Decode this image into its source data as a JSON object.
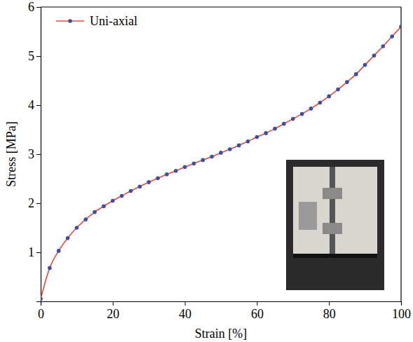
{
  "chart_data": {
    "type": "line",
    "x_label": "Strain [%]",
    "y_label": "Stress [MPa]",
    "x": [
      0,
      2.5,
      5,
      7.5,
      10,
      12.5,
      15,
      17.5,
      20,
      22.5,
      25,
      27.5,
      30,
      32.5,
      35,
      37.5,
      40,
      42.5,
      45,
      47.5,
      50,
      52.5,
      55,
      57.5,
      60,
      62.5,
      65,
      67.5,
      70,
      72.5,
      75,
      77.5,
      80,
      82.5,
      85,
      87.5,
      90,
      92.5,
      95,
      97.5,
      100
    ],
    "series": [
      {
        "name": "Uni-axial",
        "color": "#e8483a",
        "marker": "circle",
        "line_style": "solid",
        "values": [
          0.05,
          0.68,
          1.03,
          1.29,
          1.5,
          1.67,
          1.82,
          1.94,
          2.05,
          2.15,
          2.25,
          2.34,
          2.43,
          2.51,
          2.59,
          2.66,
          2.74,
          2.81,
          2.88,
          2.95,
          3.03,
          3.1,
          3.18,
          3.26,
          3.35,
          3.43,
          3.52,
          3.62,
          3.72,
          3.82,
          3.93,
          4.05,
          4.18,
          4.32,
          4.47,
          4.63,
          4.82,
          5.01,
          5.2,
          5.4,
          5.6
        ]
      }
    ],
    "xlim": [
      0,
      100
    ],
    "xticks": [
      0,
      20,
      40,
      60,
      80,
      100
    ],
    "ylim": [
      0,
      6
    ],
    "yticks": [
      1,
      2,
      3,
      4,
      5,
      6
    ],
    "grid": false,
    "legend": "upper left"
  }
}
